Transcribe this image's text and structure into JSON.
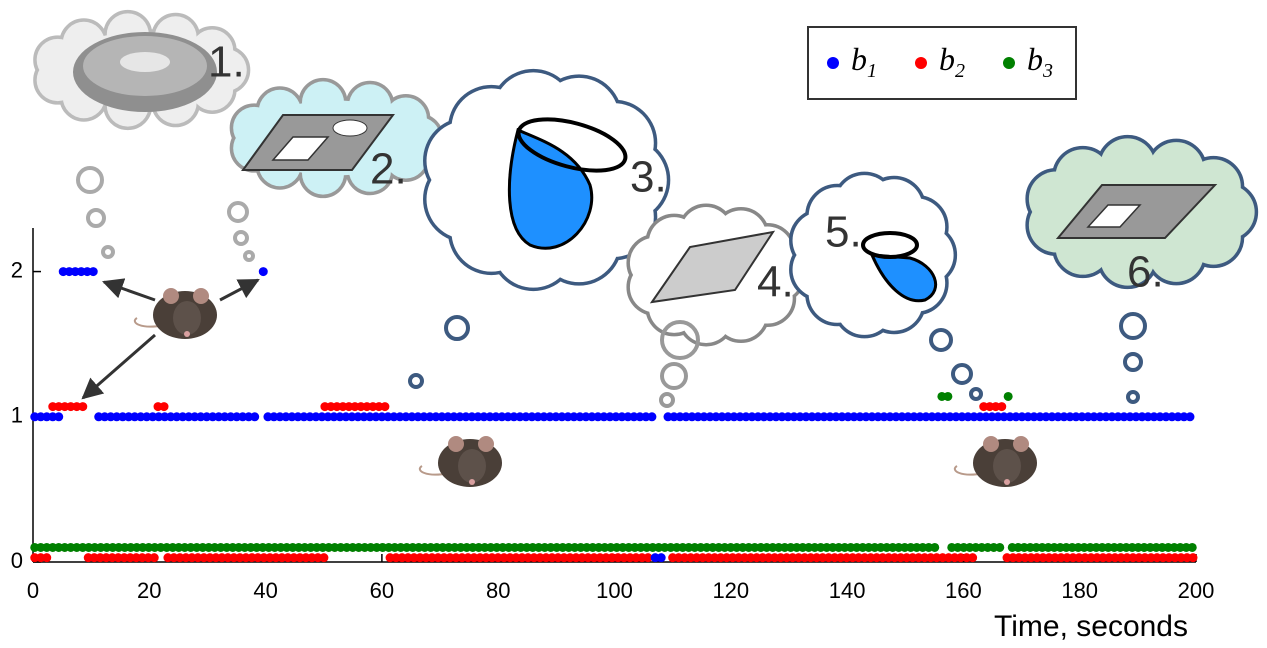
{
  "chart_data": {
    "type": "line",
    "xlabel": "Time, seconds",
    "xlim": [
      0,
      200
    ],
    "ylim": [
      0,
      2.3
    ],
    "xticks": [
      0,
      20,
      40,
      60,
      80,
      100,
      120,
      140,
      160,
      180,
      200
    ],
    "yticks": [
      0,
      1,
      2
    ],
    "legend": "upper right",
    "annotations": [
      "1.",
      "2.",
      "3.",
      "4.",
      "5.",
      "6."
    ],
    "series": [
      {
        "name": "b1",
        "color": "#0000ff",
        "x": [
          0.3,
          5.0,
          null,
          5.2,
          11.2,
          null,
          11.3,
          38.7,
          null,
          39.6,
          null,
          40.4,
          107,
          null,
          107,
          108.7,
          null,
          109.2,
          199.8
        ],
        "values": [
          1,
          1,
          null,
          2,
          2,
          null,
          1,
          1,
          null,
          2,
          null,
          1,
          1,
          null,
          0.03,
          0.03,
          null,
          1,
          1
        ]
      },
      {
        "name": "b2",
        "color": "#ff0000",
        "x": [
          0.3,
          3,
          null,
          3.4,
          9,
          null,
          9.5,
          21,
          null,
          21.5,
          23,
          null,
          23.2,
          50.2,
          null,
          50.2,
          61,
          null,
          61.4,
          106.5,
          null,
          110,
          162.5,
          null,
          163.5,
          167,
          null,
          167.5,
          199.8
        ],
        "values": [
          0.03,
          0.03,
          null,
          1.07,
          1.07,
          null,
          0.03,
          0.03,
          null,
          1.07,
          1.07,
          null,
          0.03,
          0.03,
          null,
          1.07,
          1.07,
          null,
          0.03,
          0.03,
          null,
          0.03,
          0.03,
          null,
          1.07,
          1.07,
          null,
          0.03,
          0.03
        ]
      },
      {
        "name": "b3",
        "color": "#008000",
        "x": [
          0.3,
          156,
          null,
          156.3,
          158,
          null,
          158,
          167,
          null,
          167.7,
          null,
          168.4,
          199.8
        ],
        "values": [
          0.1,
          0.1,
          null,
          1.14,
          1.14,
          null,
          0.1,
          0.1,
          null,
          1.14,
          null,
          0.1,
          0.1
        ]
      }
    ]
  }
}
